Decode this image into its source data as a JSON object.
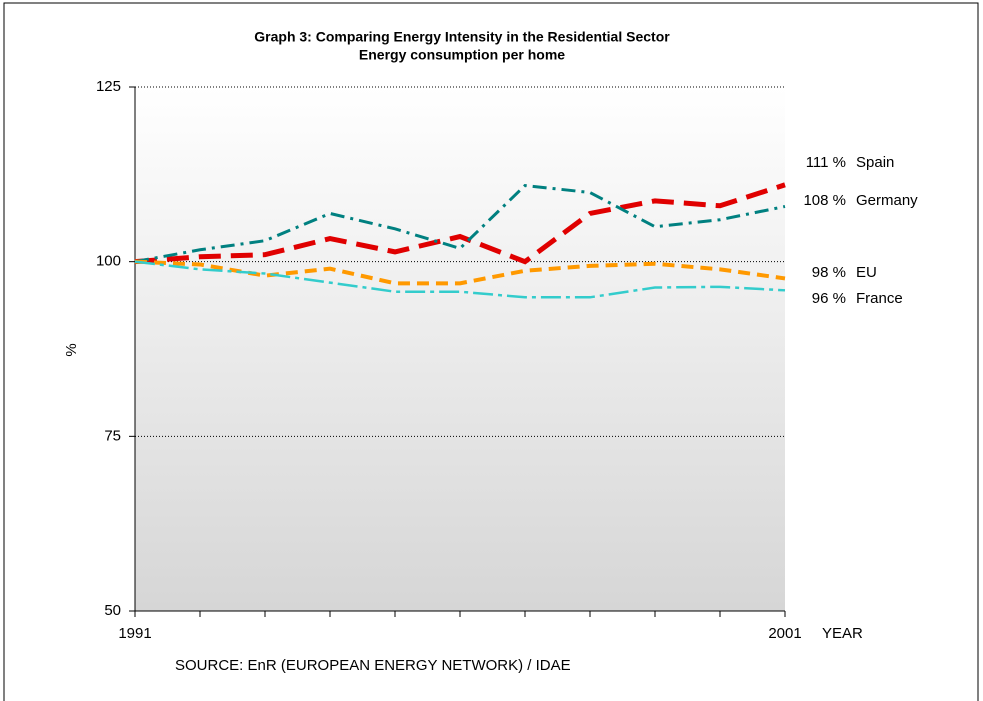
{
  "chart_data": {
    "type": "line",
    "title": "Graph 3: Comparing Energy Intensity in the Residential Sector",
    "subtitle": "Energy consumption per home",
    "y_label": "%",
    "x_label": "YEAR",
    "source": "SOURCE: EnR (EUROPEAN ENERGY NETWORK) / IDAE",
    "x": [
      1991,
      1992,
      1993,
      1994,
      1995,
      1996,
      1997,
      1998,
      1999,
      2000,
      2001
    ],
    "xlim": [
      1991,
      2001
    ],
    "xticks": [
      1991,
      2001
    ],
    "ylim": [
      50,
      125
    ],
    "yticks": [
      50,
      75,
      100,
      125
    ],
    "grid": true,
    "series": [
      {
        "name": "Spain",
        "end_label": "111 %",
        "color": "#e00000",
        "width": 5,
        "dash": "22,10",
        "values": [
          100,
          100.7,
          101,
          103.3,
          101.4,
          103.6,
          100,
          106.9,
          108.7,
          108,
          111
        ]
      },
      {
        "name": "Germany",
        "end_label": "108 %",
        "color": "#008080",
        "width": 3,
        "dash": "14,6,3,6",
        "values": [
          100,
          101.7,
          103,
          106.9,
          104.7,
          101.9,
          110.9,
          109.9,
          105,
          106,
          107.9
        ]
      },
      {
        "name": "EU",
        "end_label": "98 %",
        "color": "#ff9900",
        "width": 4,
        "dash": "12,7",
        "values": [
          100,
          99.6,
          98,
          99,
          96.9,
          96.9,
          98.7,
          99.4,
          99.7,
          98.9,
          97.6
        ]
      },
      {
        "name": "France",
        "end_label": "96 %",
        "color": "#33cccc",
        "width": 2.5,
        "dash": "20,5,4,5",
        "values": [
          100,
          98.9,
          98.3,
          97,
          95.7,
          95.7,
          94.9,
          94.9,
          96.3,
          96.4,
          95.9
        ]
      }
    ]
  }
}
